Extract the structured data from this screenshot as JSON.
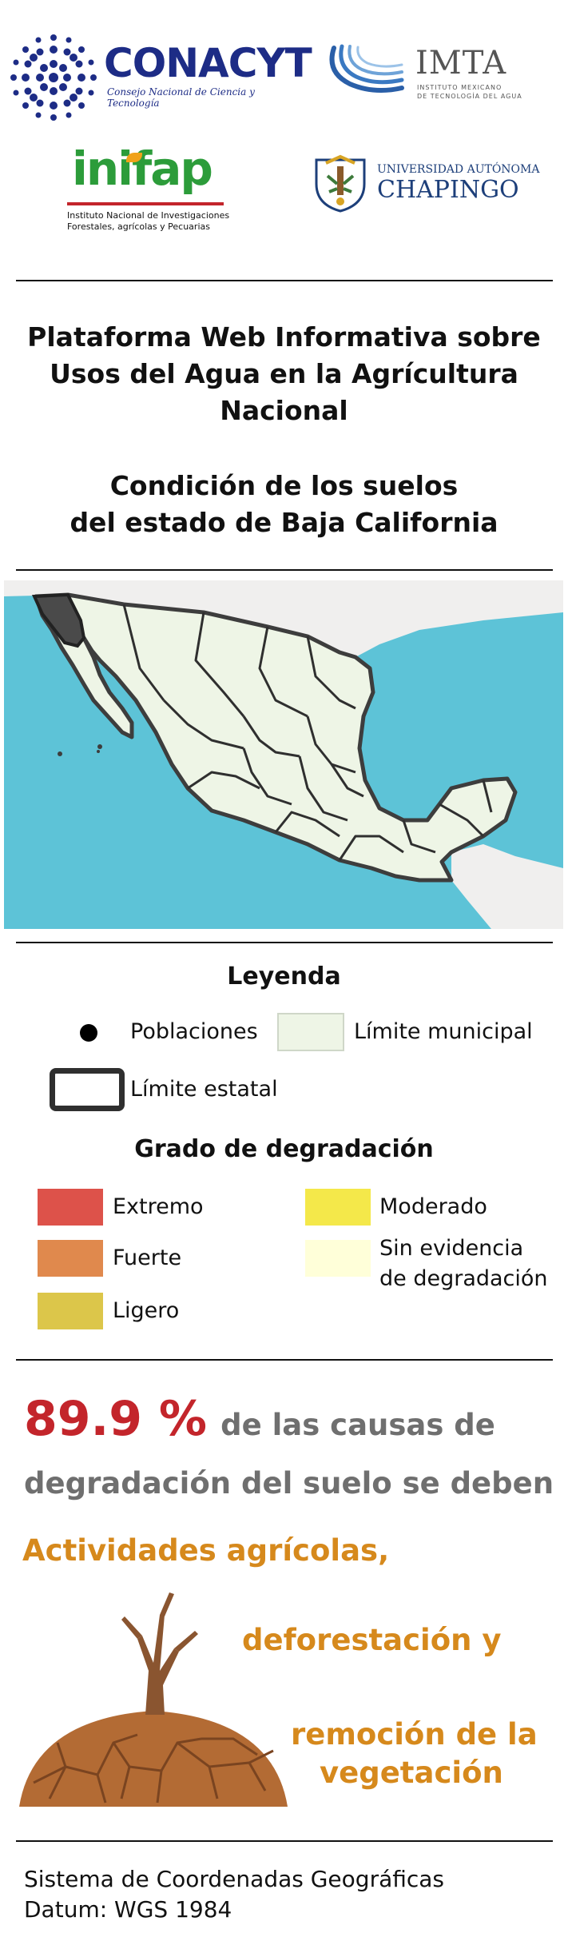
{
  "logos": {
    "conacyt": {
      "name": "CONACYT",
      "subtitle": "Consejo Nacional de Ciencia y Tecnología"
    },
    "imta": {
      "name": "IMTA",
      "subtitle_1": "INSTITUTO MEXICANO",
      "subtitle_2": "DE TECNOLOGÍA DEL AGUA"
    },
    "inifap": {
      "name": "inifap",
      "subtitle_1": "Instituto Nacional de Investigaciones",
      "subtitle_2": "Forestales, agrícolas y Pecuarias"
    },
    "chapingo": {
      "line1": "UNIVERSIDAD AUTÓNOMA",
      "line2": "CHAPINGO"
    }
  },
  "header": {
    "title_line1": "Plataforma Web Informativa sobre",
    "title_line2": "Usos del Agua en la Agrícultura",
    "title_line3": "Nacional",
    "subtitle_line1": "Condición de los suelos",
    "subtitle_line2": "del estado de Baja California"
  },
  "colors": {
    "extremo": "#dd524a",
    "fuerte": "#e0894d",
    "ligero": "#dcc64a",
    "moderado": "#f4e84a",
    "sin_evidencia": "#ffffd9",
    "municipal": "#eef5e6",
    "ocean": "#5dc3d7",
    "highlight_state": "#4a4a4a"
  },
  "legend": {
    "title": "Leyenda",
    "poblaciones": "Poblaciones",
    "limite_municipal": "Límite municipal",
    "limite_estatal": "Límite estatal",
    "degradation_title": "Grado de degradación",
    "extremo": "Extremo",
    "fuerte": "Fuerte",
    "ligero": "Ligero",
    "moderado": "Moderado",
    "sin_evidencia_1": "Sin evidencia",
    "sin_evidencia_2": "de degradación"
  },
  "stat": {
    "value": "89.9 %",
    "text_line1": "de las causas  de",
    "text_line2": "degradación del suelo se deben"
  },
  "causes": {
    "c1": "Actividades agrícolas,",
    "c2": "deforestación y",
    "c3_line1": "remoción de la",
    "c3_line2": "vegetación"
  },
  "footer": {
    "line1": "Sistema de Coordenadas Geográficas",
    "line2": "Datum: WGS 1984"
  }
}
